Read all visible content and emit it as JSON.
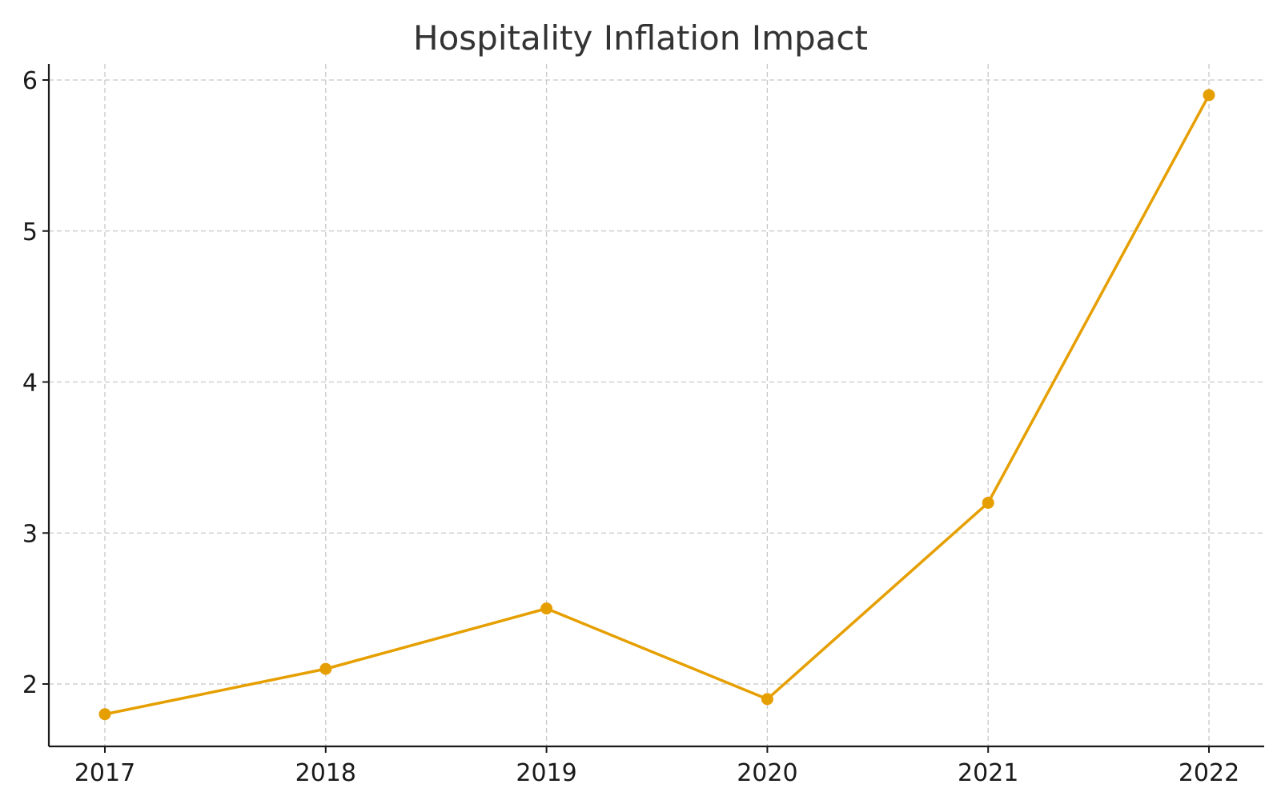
{
  "chart_data": {
    "type": "line",
    "title": "Hospitality Inflation Impact",
    "xlabel": "",
    "ylabel": "",
    "categories": [
      "2017",
      "2018",
      "2019",
      "2020",
      "2021",
      "2022"
    ],
    "series": [
      {
        "values": [
          1.8,
          2.1,
          2.5,
          1.9,
          3.2,
          5.9
        ],
        "color": "#E69F00"
      }
    ],
    "y_ticks": [
      "2",
      "3",
      "4",
      "5",
      "6"
    ],
    "ylim": [
      1.6,
      6.1
    ],
    "grid": true,
    "markers": true
  }
}
